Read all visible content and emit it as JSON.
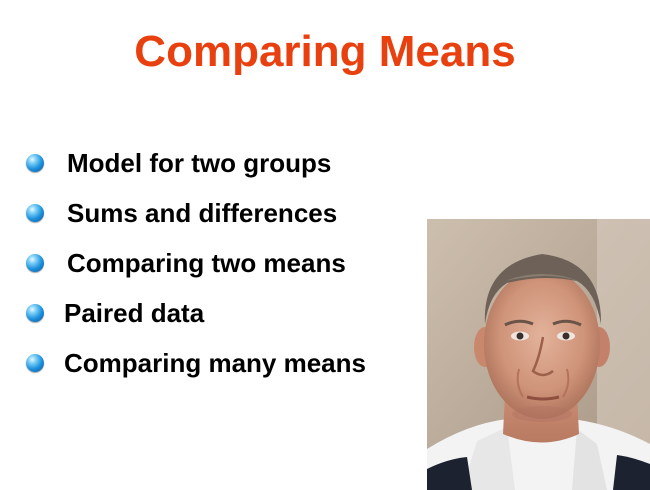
{
  "slide": {
    "title": "Comparing Means",
    "title_color": "#e8410f",
    "bullet_icon": "blue-sphere-bullet-icon",
    "bullets": [
      {
        "label": "Model for two groups"
      },
      {
        "label": "Sums and differences"
      },
      {
        "label": "Comparing two means"
      },
      {
        "label": "Paired data"
      },
      {
        "label": "Comparing many means"
      }
    ],
    "photo": {
      "subject": "presenter-headshot"
    }
  }
}
